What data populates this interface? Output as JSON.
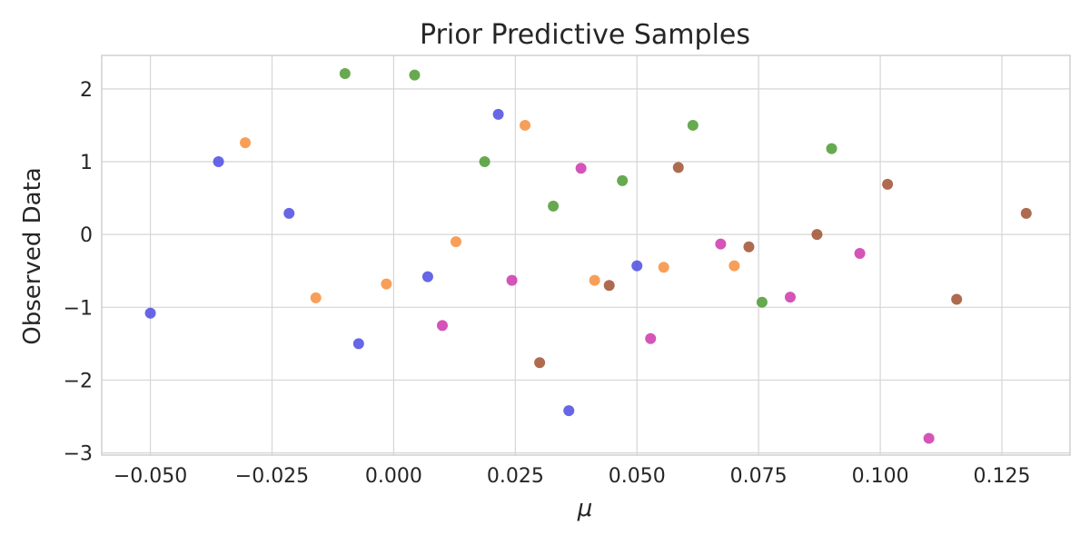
{
  "chart_data": {
    "type": "scatter",
    "title": "Prior Predictive Samples",
    "xlabel": "μ",
    "ylabel": "Observed Data",
    "xlim": [
      -0.06,
      0.139
    ],
    "ylim": [
      -3.03,
      2.46
    ],
    "grid": true,
    "x_ticks": [
      -0.05,
      -0.025,
      0.0,
      0.025,
      0.05,
      0.075,
      0.1,
      0.125
    ],
    "x_tick_labels": [
      "−0.050",
      "−0.025",
      "0.000",
      "0.025",
      "0.050",
      "0.075",
      "0.100",
      "0.125"
    ],
    "y_ticks": [
      -3,
      -2,
      -1,
      0,
      1,
      2
    ],
    "y_tick_labels": [
      "−3",
      "−2",
      "−1",
      "0",
      "1",
      "2"
    ],
    "series": [
      {
        "color": "#4444e0",
        "points": [
          [
            -0.05,
            -1.08
          ],
          [
            -0.036,
            1.0
          ],
          [
            -0.0215,
            0.29
          ],
          [
            -0.0072,
            -1.5
          ],
          [
            0.007,
            -0.58
          ],
          [
            0.0215,
            1.65
          ],
          [
            0.036,
            -2.42
          ],
          [
            0.05,
            -0.43
          ]
        ]
      },
      {
        "color": "#f58a35",
        "points": [
          [
            -0.0305,
            1.26
          ],
          [
            -0.016,
            -0.87
          ],
          [
            -0.0015,
            -0.68
          ],
          [
            0.0128,
            -0.1
          ],
          [
            0.027,
            1.5
          ],
          [
            0.0413,
            -0.63
          ],
          [
            0.0555,
            -0.45
          ],
          [
            0.07,
            -0.43
          ]
        ]
      },
      {
        "color": "#45962a",
        "points": [
          [
            -0.01,
            2.21
          ],
          [
            0.0043,
            2.19
          ],
          [
            0.0187,
            1.0
          ],
          [
            0.0328,
            0.39
          ],
          [
            0.047,
            0.74
          ],
          [
            0.0615,
            1.5
          ],
          [
            0.0757,
            -0.93
          ],
          [
            0.09,
            1.18
          ]
        ]
      },
      {
        "color": "#cc2ea8",
        "points": [
          [
            0.01,
            -1.25
          ],
          [
            0.0243,
            -0.63
          ],
          [
            0.0385,
            0.91
          ],
          [
            0.0528,
            -1.43
          ],
          [
            0.0672,
            -0.13
          ],
          [
            0.0815,
            -0.86
          ],
          [
            0.0958,
            -0.26
          ],
          [
            0.11,
            -2.8
          ]
        ]
      },
      {
        "color": "#9c4b28",
        "points": [
          [
            0.03,
            -1.76
          ],
          [
            0.0443,
            -0.7
          ],
          [
            0.0585,
            0.92
          ],
          [
            0.073,
            -0.17
          ],
          [
            0.087,
            0.0
          ],
          [
            0.1015,
            0.69
          ],
          [
            0.1157,
            -0.89
          ],
          [
            0.13,
            0.29
          ]
        ]
      }
    ]
  }
}
